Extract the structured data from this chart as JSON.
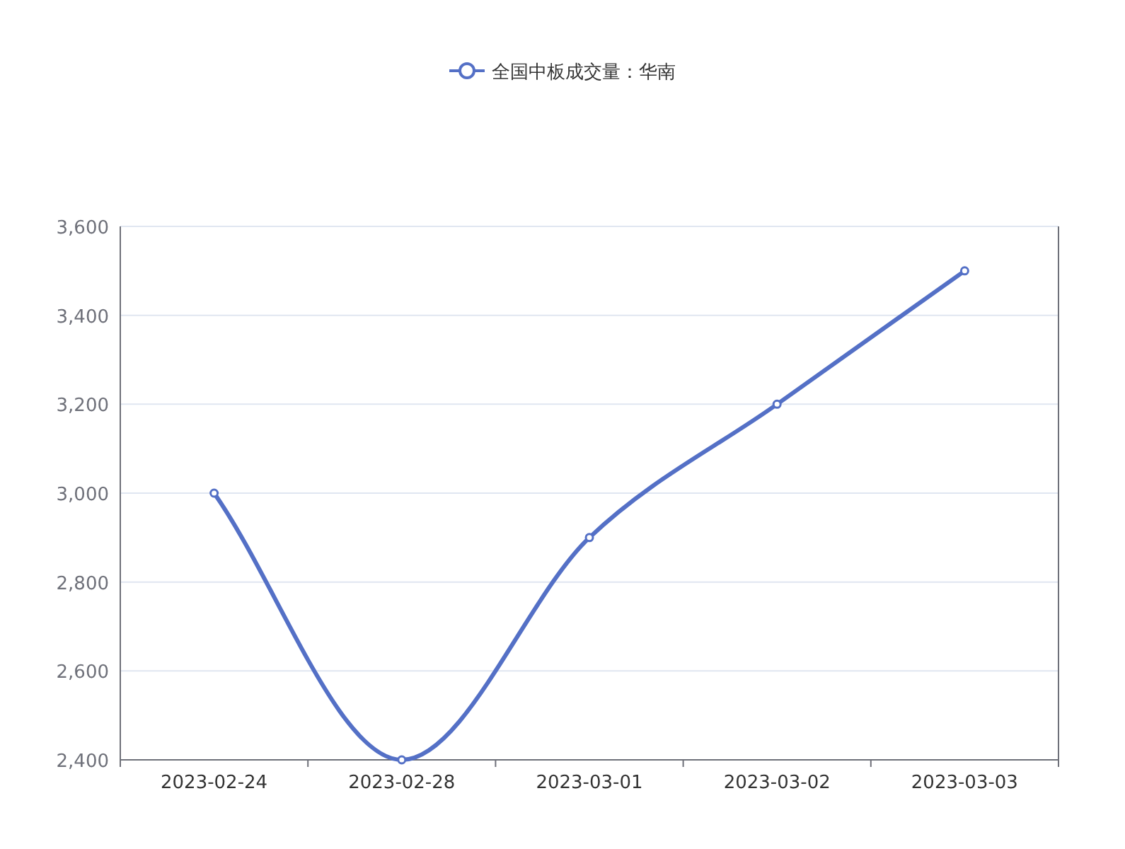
{
  "chart_data": {
    "type": "line",
    "categories": [
      "2023-02-24",
      "2023-02-28",
      "2023-03-01",
      "2023-03-02",
      "2023-03-03"
    ],
    "series": [
      {
        "name": "全国中板成交量：华南",
        "color": "#5470c6",
        "values": [
          3000,
          2400,
          2900,
          3200,
          3500
        ]
      }
    ],
    "ylim": [
      2400,
      3600
    ],
    "yticks": [
      {
        "value": 2400,
        "label": "2,400"
      },
      {
        "value": 2600,
        "label": "2,600"
      },
      {
        "value": 2800,
        "label": "2,800"
      },
      {
        "value": 3000,
        "label": "3,000"
      },
      {
        "value": 3200,
        "label": "3,200"
      },
      {
        "value": 3400,
        "label": "3,400"
      },
      {
        "value": 3600,
        "label": "3,600"
      }
    ],
    "grid": "y",
    "legend": "top",
    "marker": "circle",
    "line_style": "solid"
  }
}
